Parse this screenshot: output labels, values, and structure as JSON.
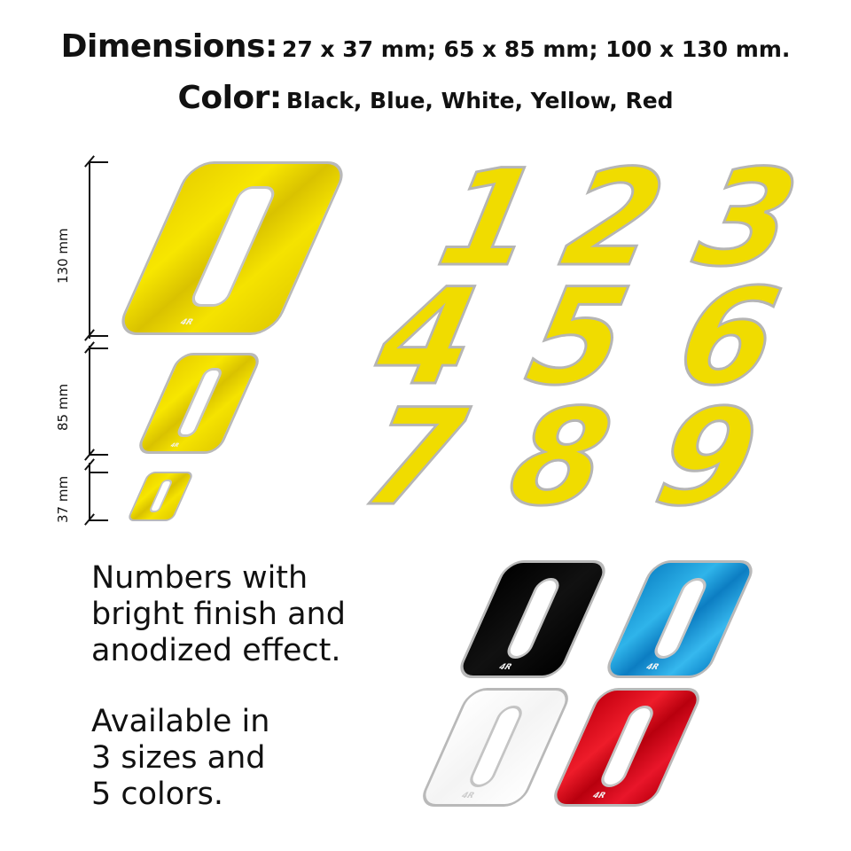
{
  "header": {
    "dimensions_key": "Dimensions:",
    "dimensions_value": "27 x 37 mm; 65 x 85 mm; 100 x 130 mm.",
    "color_key": "Color:",
    "color_value": "Black, Blue, White, Yellow, Red"
  },
  "size_labels": [
    "130 mm",
    "85 mm",
    "37 mm"
  ],
  "logo_text": "4R",
  "digits": [
    "1",
    "2",
    "3",
    "4",
    "5",
    "6",
    "7",
    "8",
    "9"
  ],
  "zero_glyph": "0",
  "color_samples": [
    "black",
    "blue",
    "white",
    "red"
  ],
  "colors": {
    "yellow": "#f0dc00",
    "black": "#000000",
    "blue": "#2fb4ea",
    "white": "#ffffff",
    "red": "#e01020",
    "silver_edge": "#b9b9b9"
  },
  "notes": {
    "finish": [
      "Numbers with",
      "bright finish and",
      "anodized effect."
    ],
    "availability": [
      "Available in",
      "3 sizes and",
      "5 colors."
    ]
  }
}
